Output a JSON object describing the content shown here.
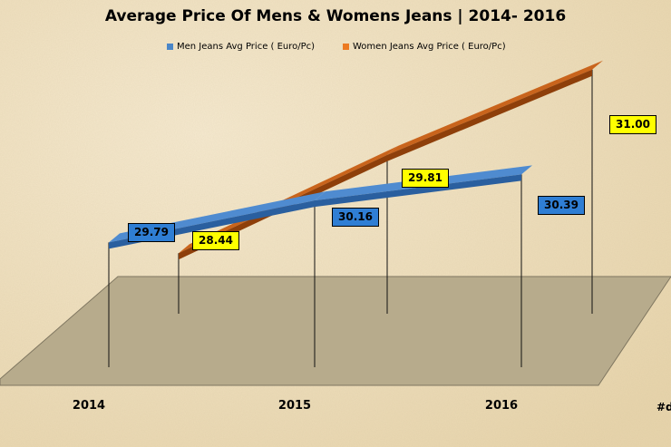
{
  "chart_data": {
    "type": "line",
    "title": "Average Price Of Mens & Womens Jeans | 2014- 2016",
    "categories": [
      "2014",
      "2015",
      "2016"
    ],
    "series": [
      {
        "name": "Men Jeans Avg Price ( Euro/Pc)",
        "values": [
          29.79,
          30.16,
          30.39
        ],
        "color": "#2f6fb8"
      },
      {
        "name": "Women Jeans Avg Price ( Euro/Pc)",
        "values": [
          28.44,
          29.81,
          31.0
        ],
        "color": "#c8621a"
      }
    ],
    "data_labels": {
      "men": [
        "29.79",
        "30.16",
        "30.39"
      ],
      "women": [
        "28.44",
        "29.81",
        "31.00"
      ]
    },
    "xlabel": "",
    "ylabel": "",
    "legend_position": "top",
    "grid": false,
    "style": "3d-ribbon"
  },
  "corner_text": "#d"
}
